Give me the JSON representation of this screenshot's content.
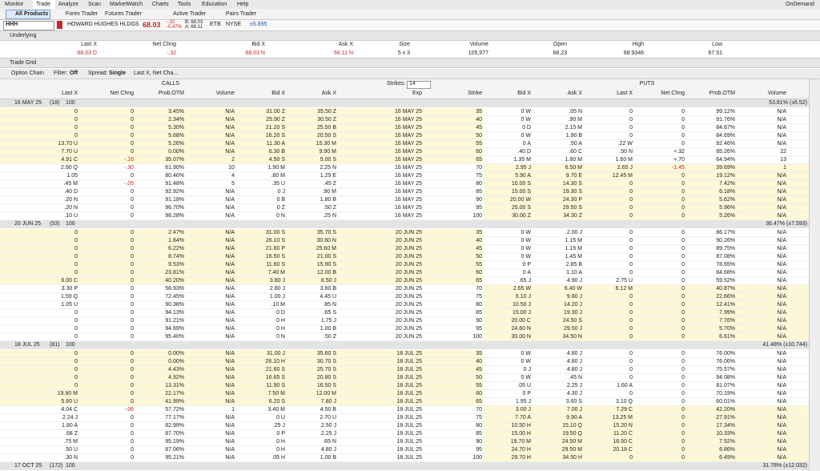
{
  "menu": {
    "tabs": [
      "Monitor",
      "Trade",
      "Analyze",
      "Scan",
      "MarketWatch",
      "Charts",
      "Tools",
      "Education",
      "Help"
    ],
    "right": "OnDemand"
  },
  "subtabs": [
    "All Products",
    "Forex Trader",
    "Futures Trader",
    "Active Trader",
    "Pairs Trader"
  ],
  "symbol_bar": {
    "symbol": "HHH",
    "name": "HOWARD HUGHES HLDGS",
    "last": "68.03",
    "change": "-.32",
    "change_pct": "-0.47%",
    "bid": "B: 68.03",
    "ask": "A: 68.11",
    "etb": "ETB",
    "exchange": "NYSE",
    "move": "±5.895"
  },
  "underlying": {
    "title": "Underlying",
    "headers": [
      "Last X",
      "Net Chng",
      "Bid X",
      "Ask X",
      "Size",
      "Volume",
      "Open",
      "High",
      "Low"
    ],
    "values": [
      "68.03 D",
      "-.32",
      "68.03 N",
      "68.11 N",
      "5 x 3",
      "105,977",
      "68.23",
      "68.9346",
      "67.51"
    ]
  },
  "trade_grid": "Trade Grid",
  "option_chain": {
    "title": "Option Chain",
    "filter_label": "Filter:",
    "filter_value": "Off",
    "spread_label": "Spread:",
    "spread_value": "Single",
    "layout": "Last X, Net Cha...",
    "calls": "CALLS",
    "puts": "PUTS",
    "strikes_label": "Strikes:",
    "strikes_value": "14",
    "headers": [
      "Last X",
      "Net Chng",
      "Prob.OTM",
      "Volume",
      "Bid X",
      "Ask X",
      "Exp",
      "Strike",
      "Bid X",
      "Ask X",
      "Last X",
      "Net Chng",
      "Prob.OTM",
      "Volume"
    ],
    "groups": [
      {
        "label": "16 MAY 25",
        "days": "(18)",
        "mult": "100",
        "iv": "53.81% (±6.52)",
        "rows": [
          [
            "0",
            "0",
            "3.45%",
            "N/A",
            "31.00 Z",
            "35.50 Z",
            "16 MAY 25",
            "35",
            "0 W",
            ".05 N",
            "0",
            "0",
            "99.12%",
            "N/A"
          ],
          [
            "0",
            "0",
            "2.34%",
            "N/A",
            "25.90 Z",
            "30.50 Z",
            "16 MAY 25",
            "40",
            "0 W",
            ".90 M",
            "0",
            "0",
            "91.76%",
            "N/A"
          ],
          [
            "0",
            "0",
            "5.30%",
            "N/A",
            "21.20 S",
            "25.50 B",
            "16 MAY 25",
            "45",
            "0 D",
            "2.15 M",
            "0",
            "0",
            "84.67%",
            "N/A"
          ],
          [
            "0",
            "0",
            "5.68%",
            "N/A",
            "16.20 S",
            "20.50 S",
            "16 MAY 25",
            "50",
            "0 W",
            "1.90 B",
            "0",
            "0",
            "84.69%",
            "N/A"
          ],
          [
            "13.70 U",
            "0",
            "5.26%",
            "N/A",
            "11.30 A",
            "15.30 M",
            "16 MAY 25",
            "55",
            "0 A",
            ".50 A",
            ".22 W",
            "0",
            "92.46%",
            "N/A"
          ],
          [
            "7.70 U",
            "0",
            "0.00%",
            "N/A",
            "6.30 B",
            "9.90 M",
            "16 MAY 25",
            "60",
            ".40 D",
            ".60 C",
            ".50 N",
            "+.32",
            "85.26%",
            "22"
          ],
          [
            "4.91 C",
            "-.16",
            "35.07%",
            "2",
            "4.50 S",
            "5.00 S",
            "16 MAY 25",
            "65",
            "1.35 M",
            "1.80 M",
            "1.60 M",
            "+.70",
            "64.94%",
            "13"
          ],
          [
            "2.90 Q",
            "-.30",
            "61.90%",
            "10",
            "1.90 M",
            "2.25 N",
            "16 MAY 25",
            "70",
            "2.95 J",
            "6.50 M",
            "2.65 J",
            "-1.45",
            "39.69%",
            "1"
          ],
          [
            "1.05",
            "0",
            "80.46%",
            "4",
            ".80 M",
            "1.25 E",
            "16 MAY 25",
            "75",
            "5.90 A",
            "9.70 E",
            "12.45 M",
            "0",
            "19.12%",
            "N/A"
          ],
          [
            ".45 M",
            "-.05",
            "91.48%",
            "5",
            ".35 U",
            ".45 Z",
            "16 MAY 25",
            "80",
            "10.00 S",
            "14.30 S",
            "0",
            "0",
            "7.42%",
            "N/A"
          ],
          [
            ".40 D",
            "0",
            "92.92%",
            "N/A",
            "0 J",
            ".90 M",
            "16 MAY 25",
            "85",
            "15.00 S",
            "19.30 S",
            "0",
            "0",
            "6.18%",
            "N/A"
          ],
          [
            ".20 N",
            "0",
            "91.18%",
            "N/A",
            "0 B",
            "1.80 B",
            "16 MAY 25",
            "90",
            "20.00 W",
            "24.30 P",
            "0",
            "0",
            "5.62%",
            "N/A"
          ],
          [
            ".20 N",
            "0",
            "96.70%",
            "N/A",
            "0 Z",
            ".50 Z",
            "16 MAY 25",
            "95",
            "25.00 S",
            "29.50 S",
            "0",
            "0",
            "5.96%",
            "N/A"
          ],
          [
            ".10 U",
            "0",
            "98.28%",
            "N/A",
            "0 N",
            ".25 N",
            "16 MAY 25",
            "100",
            "30.00 Z",
            "34.30 Z",
            "0",
            "0",
            "5.26%",
            "N/A"
          ]
        ]
      },
      {
        "label": "20 JUN 25",
        "days": "(53)",
        "mult": "100",
        "iv": "36.47% (±7.593)",
        "rows": [
          [
            "0",
            "0",
            "2.47%",
            "N/A",
            "31.00 S",
            "35.70 S",
            "20 JUN 25",
            "35",
            "0 W",
            "2.00 J",
            "0",
            "0",
            "86.17%",
            "N/A"
          ],
          [
            "0",
            "0",
            "1.84%",
            "N/A",
            "26.10 S",
            "30.60 N",
            "20 JUN 25",
            "40",
            "0 W",
            "1.15 M",
            "0",
            "0",
            "90.26%",
            "N/A"
          ],
          [
            "0",
            "0",
            "6.22%",
            "N/A",
            "21.60 P",
            "25.60 M",
            "20 JUN 25",
            "45",
            "0 W",
            "1.15 M",
            "0",
            "0",
            "89.75%",
            "N/A"
          ],
          [
            "0",
            "0",
            "8.74%",
            "N/A",
            "16.50 S",
            "21.00 S",
            "20 JUN 25",
            "50",
            "0 W",
            "1.45 M",
            "0",
            "0",
            "87.08%",
            "N/A"
          ],
          [
            "0",
            "0",
            "9.53%",
            "N/A",
            "11.60 S",
            "15.90 S",
            "20 JUN 25",
            "55",
            "0 P",
            "2.85 B",
            "0",
            "0",
            "78.65%",
            "N/A"
          ],
          [
            "0",
            "0",
            "23.81%",
            "N/A",
            "7.40 M",
            "12.00 B",
            "20 JUN 25",
            "60",
            "0 A",
            "1.10 A",
            "0",
            "0",
            "84.68%",
            "N/A"
          ],
          [
            "6.00 C",
            "0",
            "40.20%",
            "N/A",
            "3.80 J",
            "8.50 J",
            "20 JUN 25",
            "65",
            ".65 J",
            "4.90 J",
            "2.75 U",
            "0",
            "59.52%",
            "N/A"
          ],
          [
            "3.30 P",
            "0",
            "58.93%",
            "N/A",
            "2.80 J",
            "3.60 B",
            "20 JUN 25",
            "70",
            "2.65 W",
            "6.40 W",
            "6.12 M",
            "0",
            "40.87%",
            "N/A"
          ],
          [
            "1.59 Q",
            "0",
            "72.45%",
            "N/A",
            "1.00 J",
            "4.45 U",
            "20 JUN 25",
            "75",
            "6.10 J",
            "9.80 J",
            "0",
            "0",
            "22.66%",
            "N/A"
          ],
          [
            "1.05 U",
            "0",
            "90.38%",
            "N/A",
            ".10 M",
            ".85 N",
            "20 JUN 25",
            "80",
            "10.50 J",
            "14.20 J",
            "0",
            "0",
            "12.41%",
            "N/A"
          ],
          [
            "0",
            "0",
            "94.13%",
            "N/A",
            "0 D",
            ".65 S",
            "20 JUN 25",
            "85",
            "15.00 J",
            "19.30 J",
            "0",
            "0",
            "7.99%",
            "N/A"
          ],
          [
            "0",
            "0",
            "91.21%",
            "N/A",
            "0 H",
            "1.75 J",
            "20 JUN 25",
            "90",
            "20.00 C",
            "24.50 S",
            "0",
            "0",
            "7.76%",
            "N/A"
          ],
          [
            "0",
            "0",
            "94.69%",
            "N/A",
            "0 H",
            "1.00 B",
            "20 JUN 25",
            "95",
            "24.60 N",
            "29.50 J",
            "0",
            "0",
            "5.70%",
            "N/A"
          ],
          [
            "0",
            "0",
            "95.40%",
            "N/A",
            "0 N",
            ".50 Z",
            "20 JUN 25",
            "100",
            "30.00 N",
            "34.50 N",
            "0",
            "0",
            "6.61%",
            "N/A"
          ]
        ]
      },
      {
        "label": "18 JUL 25",
        "days": "(81)",
        "mult": "100",
        "iv": "41.48% (±10.744)",
        "rows": [
          [
            "0",
            "0",
            "0.00%",
            "N/A",
            "31.00 J",
            "35.60 S",
            "18 JUL 25",
            "35",
            "0 W",
            "4.80 J",
            "0",
            "0",
            "76.00%",
            "N/A"
          ],
          [
            "0",
            "0",
            "0.00%",
            "N/A",
            "26.10 H",
            "30.70 S",
            "18 JUL 25",
            "40",
            "0 W",
            "4.80 J",
            "0",
            "0",
            "76.06%",
            "N/A"
          ],
          [
            "0",
            "0",
            "4.43%",
            "N/A",
            "21.60 S",
            "25.70 S",
            "18 JUL 25",
            "45",
            "0 J",
            "4.80 J",
            "0",
            "0",
            "75.57%",
            "N/A"
          ],
          [
            "0",
            "0",
            "4.92%",
            "N/A",
            "16.65 S",
            "20.80 S",
            "18 JUL 25",
            "50",
            "0 W",
            ".45 N",
            "0",
            "0",
            "94.08%",
            "N/A"
          ],
          [
            "0",
            "0",
            "13.31%",
            "N/A",
            "11.90 S",
            "16.50 S",
            "18 JUL 25",
            "55",
            ".05 U",
            "2.25 J",
            "1.60 A",
            "0",
            "81.07%",
            "N/A"
          ],
          [
            "19.90 M",
            "0",
            "22.17%",
            "N/A",
            "7.50 M",
            "12.00 M",
            "18 JUL 25",
            "60",
            "0 P",
            "4.30 J",
            "0",
            "0",
            "70.19%",
            "N/A"
          ],
          [
            "5.60 U",
            "0",
            "41.99%",
            "N/A",
            "6.20 S",
            "7.80 J",
            "18 JUL 25",
            "65",
            "1.95 J",
            "3.60 S",
            "3.10 Q",
            "0",
            "60.01%",
            "N/A"
          ],
          [
            "4.04 C",
            "-.06",
            "57.72%",
            "1",
            "3.40 M",
            "4.50 B",
            "18 JUL 25",
            "70",
            "3.00 J",
            "7.00 J",
            "7.29 C",
            "0",
            "42.20%",
            "N/A"
          ],
          [
            "2.24 J",
            "0",
            "77.17%",
            "N/A",
            "0 U",
            "2.70 U",
            "18 JUL 25",
            "75",
            "7.70 A",
            "9.90 A",
            "13.25 M",
            "0",
            "27.91%",
            "N/A"
          ],
          [
            "1.80 A",
            "0",
            "82.99%",
            "N/A",
            ".25 J",
            "2.50 J",
            "18 JUL 25",
            "80",
            "10.50 H",
            "15.10 Q",
            "15.20 N",
            "0",
            "17.34%",
            "N/A"
          ],
          [
            ".68 Z",
            "0",
            "87.70%",
            "N/A",
            "0 P",
            "2.25 J",
            "18 JUL 25",
            "85",
            "15.00 H",
            "19.50 Q",
            "11.20 C",
            "0",
            "10.33%",
            "N/A"
          ],
          [
            ".75 M",
            "0",
            "95.19%",
            "N/A",
            "0 H",
            ".65 N",
            "18 JUL 25",
            "90",
            "19.70 M",
            "24.50 M",
            "16.50 C",
            "0",
            "7.52%",
            "N/A"
          ],
          [
            ".50 U",
            "0",
            "87.06%",
            "N/A",
            "0 H",
            "4.80 J",
            "18 JUL 25",
            "95",
            "24.70 H",
            "29.50 M",
            "20.18 C",
            "0",
            "6.86%",
            "N/A"
          ],
          [
            ".30 N",
            "0",
            "95.21%",
            "N/A",
            ".05 H",
            "1.00 B",
            "18 JUL 25",
            "100",
            "29.70 H",
            "34.50 H",
            "0",
            "0",
            "6.49%",
            "N/A"
          ]
        ]
      },
      {
        "label": "17 OCT 25",
        "days": "(172)",
        "mult": "100",
        "iv": "31.78% (±12.032)",
        "rows": []
      }
    ]
  }
}
